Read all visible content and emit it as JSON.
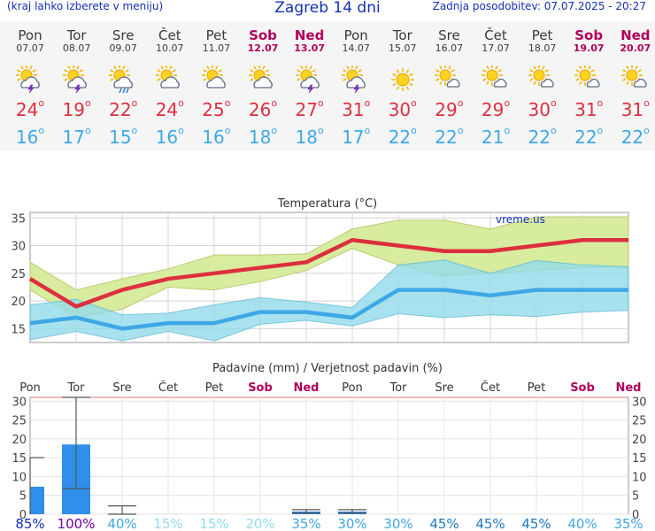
{
  "header": {
    "left": "(kraj lahko izberete v meniju)",
    "title": "Zagreb 14 dni",
    "right": "Zadnja posodobitev: 07.07.2025 - 20:27"
  },
  "colors": {
    "header_blue": "#1530b8",
    "weekend": "#b0005a",
    "tmax": "#dc2f3f",
    "tmin": "#3ea8e6",
    "max_band": "#d6ec9a",
    "min_band": "#93dcea",
    "overlap": "#7fc97f",
    "precip_bar": "#2f8fea"
  },
  "days": [
    {
      "name": "Pon",
      "date": "07.07",
      "weekend": false,
      "icon": "sun-cloud-thunder-icon",
      "tmax": "24",
      "tmin": "16"
    },
    {
      "name": "Tor",
      "date": "08.07",
      "weekend": false,
      "icon": "sun-cloud-thunder-icon",
      "tmax": "19",
      "tmin": "17"
    },
    {
      "name": "Sre",
      "date": "09.07",
      "weekend": false,
      "icon": "sun-cloud-rain-icon",
      "tmax": "22",
      "tmin": "15"
    },
    {
      "name": "Čet",
      "date": "10.07",
      "weekend": false,
      "icon": "sun-cloud-icon",
      "tmax": "24",
      "tmin": "16"
    },
    {
      "name": "Pet",
      "date": "11.07",
      "weekend": false,
      "icon": "sun-cloud-icon",
      "tmax": "25",
      "tmin": "16"
    },
    {
      "name": "Sob",
      "date": "12.07",
      "weekend": true,
      "icon": "sun-cloud-icon",
      "tmax": "26",
      "tmin": "18"
    },
    {
      "name": "Ned",
      "date": "13.07",
      "weekend": true,
      "icon": "sun-cloud-thunder-icon",
      "tmax": "27",
      "tmin": "18"
    },
    {
      "name": "Pon",
      "date": "14.07",
      "weekend": false,
      "icon": "sun-cloud-thunder-icon",
      "tmax": "31",
      "tmin": "17"
    },
    {
      "name": "Tor",
      "date": "15.07",
      "weekend": false,
      "icon": "sun-icon",
      "tmax": "30",
      "tmin": "22"
    },
    {
      "name": "Sre",
      "date": "16.07",
      "weekend": false,
      "icon": "sun-small-cloud-icon",
      "tmax": "29",
      "tmin": "22"
    },
    {
      "name": "Čet",
      "date": "17.07",
      "weekend": false,
      "icon": "sun-small-cloud-icon",
      "tmax": "29",
      "tmin": "21"
    },
    {
      "name": "Pet",
      "date": "18.07",
      "weekend": false,
      "icon": "sun-small-cloud-icon",
      "tmax": "30",
      "tmin": "22"
    },
    {
      "name": "Sob",
      "date": "19.07",
      "weekend": true,
      "icon": "sun-small-cloud-icon",
      "tmax": "31",
      "tmin": "22"
    },
    {
      "name": "Ned",
      "date": "20.07",
      "weekend": true,
      "icon": "sun-small-cloud-icon",
      "tmax": "31",
      "tmin": "22"
    }
  ],
  "chart_data": [
    {
      "type": "line",
      "title": "Temperatura (°C)",
      "watermark": "vreme.us",
      "x": [
        "07.07",
        "08.07",
        "09.07",
        "10.07",
        "11.07",
        "12.07",
        "13.07",
        "14.07",
        "15.07",
        "16.07",
        "17.07",
        "18.07",
        "19.07",
        "20.07"
      ],
      "ylim": [
        12.5,
        36
      ],
      "yticks": [
        15,
        20,
        25,
        30,
        35
      ],
      "grid": true,
      "series": [
        {
          "name": "max",
          "color": "#dc2f3f",
          "values": [
            24,
            19,
            22,
            24,
            25,
            26,
            27,
            31,
            30,
            29,
            29,
            30,
            31,
            31
          ],
          "band_low": [
            22,
            17,
            18.5,
            22.5,
            22,
            23.5,
            25.5,
            29.5,
            26.5,
            24.5,
            25,
            25.5,
            26,
            26
          ],
          "band_high": [
            27,
            22,
            24,
            25.8,
            28.3,
            28.3,
            28.5,
            33,
            34.6,
            34.6,
            33,
            35.2,
            35.2,
            35.2
          ]
        },
        {
          "name": "min",
          "color": "#3ea8e6",
          "values": [
            16,
            17,
            15,
            16,
            16,
            18,
            18,
            17,
            22,
            22,
            21,
            22,
            22,
            22
          ],
          "band_low": [
            13,
            14.5,
            12.8,
            14.5,
            12.8,
            15.8,
            16.5,
            15.5,
            17.7,
            17,
            17.5,
            17.2,
            18,
            18.3
          ],
          "band_high": [
            19.3,
            20.3,
            17.5,
            17.8,
            19.3,
            20.6,
            19.8,
            18.8,
            26.5,
            27.4,
            25,
            27.3,
            26.5,
            26.2
          ]
        }
      ]
    },
    {
      "type": "bar",
      "title": "Padavine (mm) / Verjetnost padavin (%)",
      "categories": [
        "Pon",
        "Tor",
        "Sre",
        "Čet",
        "Pet",
        "Sob",
        "Ned",
        "Pon",
        "Tor",
        "Sre",
        "Čet",
        "Pet",
        "Sob",
        "Ned"
      ],
      "weekend": [
        false,
        false,
        false,
        false,
        false,
        true,
        true,
        false,
        false,
        false,
        false,
        false,
        true,
        true
      ],
      "values": [
        7.3,
        18.5,
        0,
        0,
        0,
        0,
        0.7,
        0.7,
        0,
        0,
        0,
        0,
        0,
        0
      ],
      "range_low": [
        null,
        6.8,
        0,
        null,
        null,
        null,
        0.3,
        0.3,
        null,
        null,
        null,
        null,
        null,
        null
      ],
      "range_high": [
        15,
        31,
        2.2,
        null,
        null,
        null,
        1.2,
        1.2,
        null,
        null,
        null,
        null,
        null,
        null
      ],
      "probability": [
        "85%",
        "100%",
        "40%",
        "15%",
        "15%",
        "20%",
        "35%",
        "30%",
        "30%",
        "45%",
        "45%",
        "45%",
        "40%",
        "35%"
      ],
      "probability_colors": [
        "#1530b8",
        "#6a00a8",
        "#3ea8e6",
        "#93dcea",
        "#93dcea",
        "#93dcea",
        "#3ea8e6",
        "#3ea8e6",
        "#3ea8e6",
        "#1e78c8",
        "#1e78c8",
        "#1e78c8",
        "#3ea8e6",
        "#3ea8e6"
      ],
      "ylim": [
        0,
        31
      ],
      "yticks": [
        0,
        5,
        10,
        15,
        20,
        25,
        30
      ]
    }
  ]
}
